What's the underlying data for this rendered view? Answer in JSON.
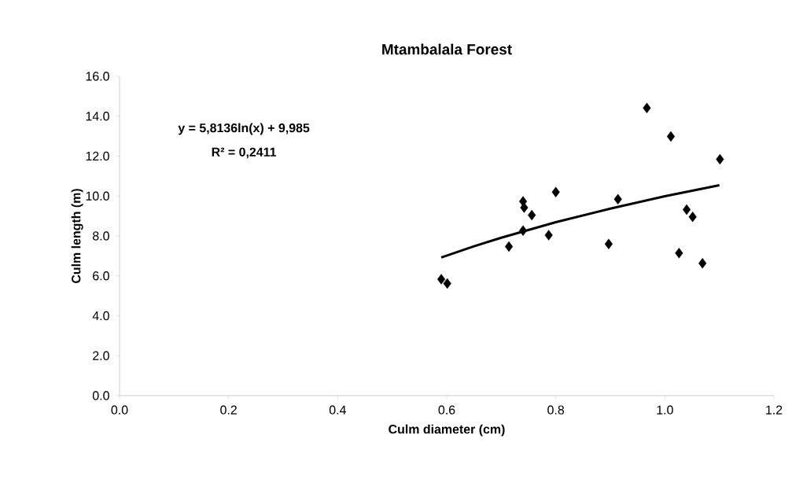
{
  "chart_data": {
    "type": "scatter",
    "title": "Mtambalala Forest",
    "xlabel": "Culm diameter (cm)",
    "ylabel": "Culm length (m)",
    "annotations": [
      "y = 5,8136ln(x) + 9,985",
      "R² = 0,2411"
    ],
    "xlim": [
      0,
      1.2
    ],
    "ylim": [
      0,
      16
    ],
    "xticks": [
      {
        "value": 0,
        "label": "0.0"
      },
      {
        "value": 0.2,
        "label": "0.2"
      },
      {
        "value": 0.4,
        "label": "0.4"
      },
      {
        "value": 0.6,
        "label": "0.6"
      },
      {
        "value": 0.8,
        "label": "0.8"
      },
      {
        "value": 1.0,
        "label": "1.0"
      },
      {
        "value": 1.2,
        "label": "1.2"
      }
    ],
    "yticks": [
      {
        "value": 0,
        "label": "0.0"
      },
      {
        "value": 2,
        "label": "2.0"
      },
      {
        "value": 4,
        "label": "4.0"
      },
      {
        "value": 6,
        "label": "6.0"
      },
      {
        "value": 8,
        "label": "8.0"
      },
      {
        "value": 10,
        "label": "10.0"
      },
      {
        "value": 12,
        "label": "12.0"
      },
      {
        "value": 14,
        "label": "14.0"
      },
      {
        "value": 16,
        "label": "16.0"
      }
    ],
    "grid": false,
    "marker": "diamond",
    "series": [
      {
        "color": "#000000",
        "x": [
          0.59,
          0.601,
          0.714,
          0.74,
          0.742,
          0.756,
          0.74,
          0.787,
          0.8,
          0.897,
          0.914,
          0.967,
          1.011,
          1.101,
          1.04,
          1.051,
          1.026,
          1.069
        ],
        "values": [
          5.83,
          5.62,
          7.47,
          9.73,
          9.42,
          9.04,
          8.27,
          8.04,
          10.2,
          7.6,
          9.84,
          14.41,
          12.99,
          11.84,
          9.32,
          8.96,
          7.14,
          6.63
        ]
      },
      {
        "type": "line",
        "color": "#000000",
        "marker": "none",
        "x": [
          0.59,
          0.65,
          0.7,
          0.8,
          0.9,
          1.0,
          1.1
        ],
        "values": [
          6.92,
          7.48,
          7.91,
          8.69,
          9.37,
          9.99,
          10.54
        ]
      }
    ]
  }
}
